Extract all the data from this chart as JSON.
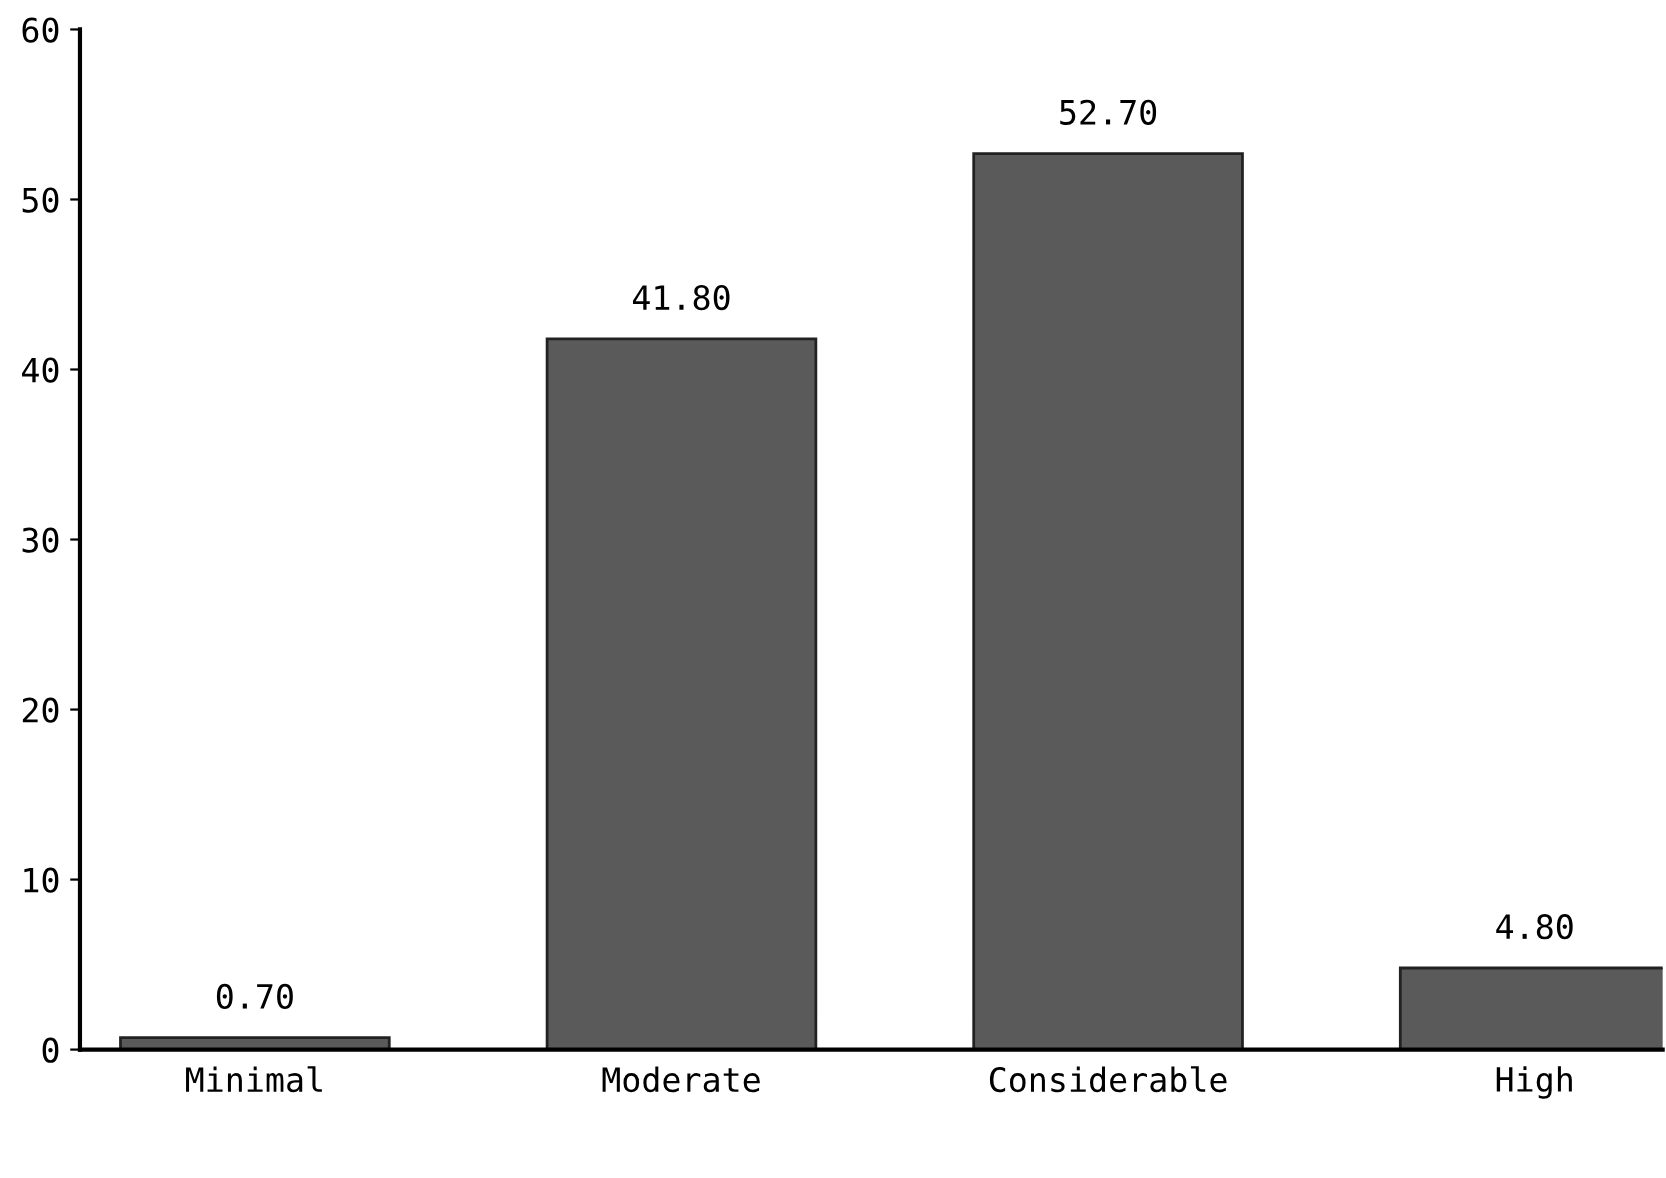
{
  "chart_data": {
    "type": "bar",
    "categories": [
      "Minimal",
      "Moderate",
      "Considerable",
      "High"
    ],
    "values": [
      0.7,
      41.8,
      52.7,
      4.8
    ],
    "value_labels": [
      "0.70",
      "41.80",
      "52.70",
      "4.80"
    ],
    "color": "#5a5a5a",
    "ylim": [
      0,
      60
    ],
    "yticks": [
      0,
      10,
      20,
      30,
      40,
      50,
      60
    ],
    "grid": false
  }
}
